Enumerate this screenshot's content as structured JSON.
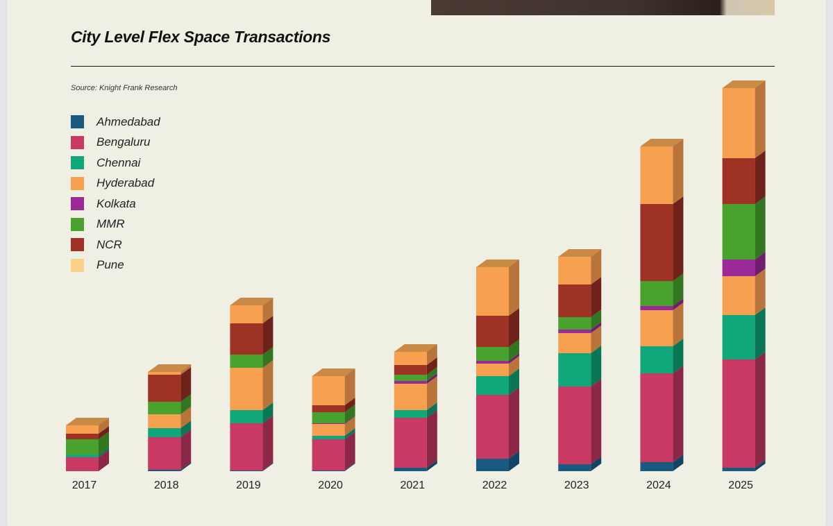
{
  "header": {
    "title": "City Level Flex Space Transactions",
    "source": "Source: Knight Frank Research"
  },
  "chart_data": {
    "type": "bar",
    "stacked": true,
    "style": "3d-stacked-columns",
    "title": "City Level Flex Space Transactions",
    "subtitle": "Source: Knight Frank Research",
    "xlabel": "",
    "ylabel": "",
    "y_axis_shown": false,
    "grid": false,
    "legend_position": "left",
    "value_note": "No y-axis printed; values are estimated relative magnitudes read from segment heights",
    "categories": [
      "2017",
      "2018",
      "2019",
      "2020",
      "2021",
      "2022",
      "2023",
      "2024",
      "2025"
    ],
    "series": [
      {
        "name": "Ahmedabad",
        "color": "#1b5a80",
        "side": "#124563",
        "values": [
          0.0,
          0.1,
          0.05,
          0.05,
          0.25,
          0.9,
          0.5,
          0.65,
          0.25
        ]
      },
      {
        "name": "Bengaluru",
        "color": "#c83a64",
        "side": "#8c2747",
        "values": [
          1.0,
          2.35,
          3.4,
          2.25,
          3.6,
          4.6,
          5.6,
          6.4,
          7.8
        ]
      },
      {
        "name": "Chennai",
        "color": "#10a87a",
        "side": "#0b7656",
        "values": [
          0.2,
          0.65,
          0.95,
          0.25,
          0.55,
          1.35,
          2.4,
          1.95,
          3.2
        ]
      },
      {
        "name": "Hyderabad",
        "color": "#f7a04f",
        "side": "#b8743a",
        "values": [
          0.0,
          1.0,
          3.05,
          0.85,
          1.9,
          0.9,
          1.45,
          2.6,
          2.8
        ]
      },
      {
        "name": "Kolkata",
        "color": "#9b2a98",
        "side": "#6f1d6c",
        "values": [
          0.0,
          0.0,
          0.0,
          0.05,
          0.2,
          0.2,
          0.25,
          0.3,
          1.2
        ]
      },
      {
        "name": "MMR",
        "color": "#4aa22e",
        "side": "#337622",
        "values": [
          1.1,
          0.9,
          0.95,
          0.8,
          0.45,
          1.0,
          0.9,
          1.8,
          4.0
        ]
      },
      {
        "name": "NCR",
        "color": "#9e3224",
        "side": "#6e2219",
        "values": [
          0.4,
          1.95,
          2.25,
          0.5,
          0.7,
          2.25,
          2.35,
          5.55,
          3.3
        ]
      },
      {
        "name": "Pune",
        "color": "#fdd088",
        "bar_color": "#f7a04f",
        "side": "#b8743a",
        "values": [
          0.6,
          0.2,
          1.3,
          2.1,
          0.95,
          3.5,
          2.0,
          4.15,
          5.05
        ]
      }
    ]
  }
}
